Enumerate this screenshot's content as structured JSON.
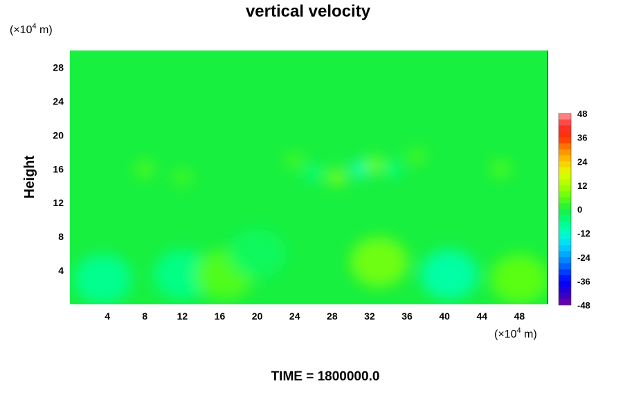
{
  "chart_data": {
    "type": "heatmap",
    "title": "vertical velocity",
    "ylabel": "Height",
    "y_unit_prefix": "(×10",
    "y_unit_exp": "4",
    "y_unit_suffix": " m)",
    "x_unit_prefix": "(×10",
    "x_unit_exp": "4",
    "x_unit_suffix": " m)",
    "xlim": [
      0,
      51
    ],
    "ylim": [
      0,
      30
    ],
    "x_ticks": [
      "4",
      "8",
      "12",
      "16",
      "20",
      "24",
      "28",
      "32",
      "36",
      "40",
      "44",
      "48"
    ],
    "y_ticks": [
      "4",
      "8",
      "12",
      "16",
      "20",
      "24",
      "28"
    ],
    "colorbar": {
      "range": [
        -48,
        48
      ],
      "ticks": [
        "48",
        "36",
        "24",
        "12",
        "0",
        "-12",
        "-24",
        "-36",
        "-48"
      ]
    },
    "background_value": 0,
    "features": [
      {
        "x": 3.5,
        "y": 3.0,
        "value": -8
      },
      {
        "x": 12.0,
        "y": 3.5,
        "value": -7
      },
      {
        "x": 16.5,
        "y": 3.5,
        "value": 5
      },
      {
        "x": 20.0,
        "y": 6.0,
        "value": -3
      },
      {
        "x": 33.0,
        "y": 5.0,
        "value": 8
      },
      {
        "x": 40.5,
        "y": 3.5,
        "value": -10
      },
      {
        "x": 48.0,
        "y": 3.0,
        "value": 6
      },
      {
        "x": 8.0,
        "y": 16.0,
        "value": 5
      },
      {
        "x": 12.0,
        "y": 15.0,
        "value": 4
      },
      {
        "x": 24.0,
        "y": 17.0,
        "value": 4
      },
      {
        "x": 26.0,
        "y": 15.5,
        "value": -6
      },
      {
        "x": 28.5,
        "y": 15.0,
        "value": 9
      },
      {
        "x": 31.0,
        "y": 16.0,
        "value": -12
      },
      {
        "x": 32.5,
        "y": 16.5,
        "value": 8
      },
      {
        "x": 34.5,
        "y": 16.0,
        "value": -6
      },
      {
        "x": 37.0,
        "y": 17.5,
        "value": 4
      },
      {
        "x": 46.0,
        "y": 16.0,
        "value": 5
      }
    ]
  },
  "footer": {
    "time_label": "TIME = 1800000.0"
  }
}
